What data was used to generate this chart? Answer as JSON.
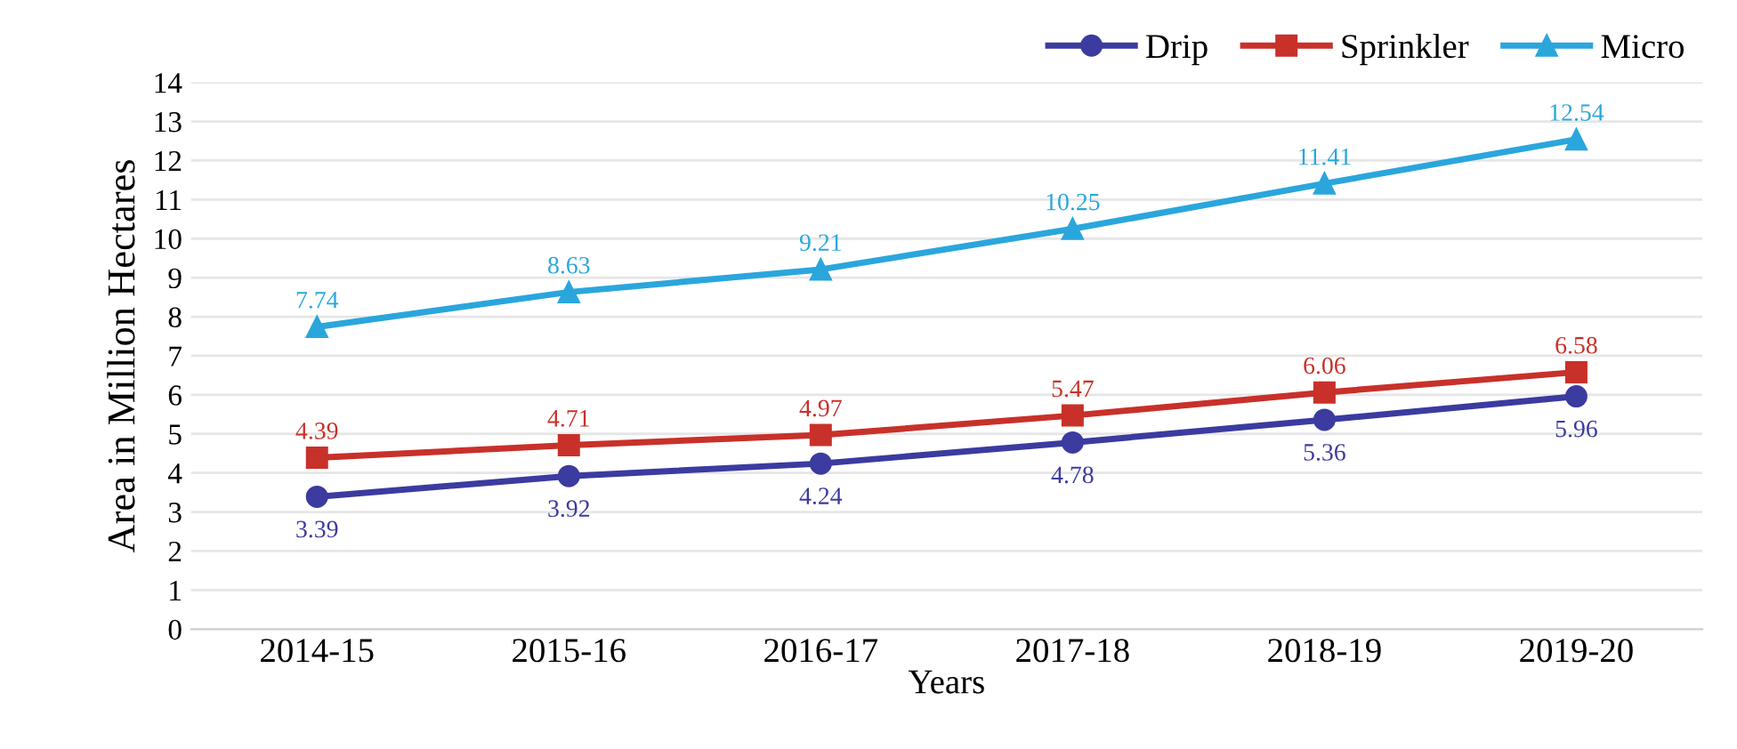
{
  "chart_data": {
    "type": "line",
    "xlabel": "Years",
    "ylabel": "Area in Million Hectares",
    "categories": [
      "2014-15",
      "2015-16",
      "2016-17",
      "2017-18",
      "2018-19",
      "2019-20"
    ],
    "series": [
      {
        "name": "Drip",
        "color": "#3b3ba0",
        "marker": "circle",
        "values": [
          3.39,
          3.92,
          4.24,
          4.78,
          5.36,
          5.96
        ]
      },
      {
        "name": "Sprinkler",
        "color": "#c8312a",
        "marker": "square",
        "values": [
          4.39,
          4.71,
          4.97,
          5.47,
          6.06,
          6.58
        ]
      },
      {
        "name": "Micro",
        "color": "#2aa6dc",
        "marker": "triangle",
        "values": [
          7.74,
          8.63,
          9.21,
          10.25,
          11.41,
          12.54
        ]
      }
    ],
    "ylim": [
      0,
      14
    ],
    "yticks": [
      0,
      1,
      2,
      3,
      4,
      5,
      6,
      7,
      8,
      9,
      10,
      11,
      12,
      13,
      14
    ],
    "grid": "y",
    "legend": "top right",
    "data_labels": true,
    "line_style": "solid"
  }
}
